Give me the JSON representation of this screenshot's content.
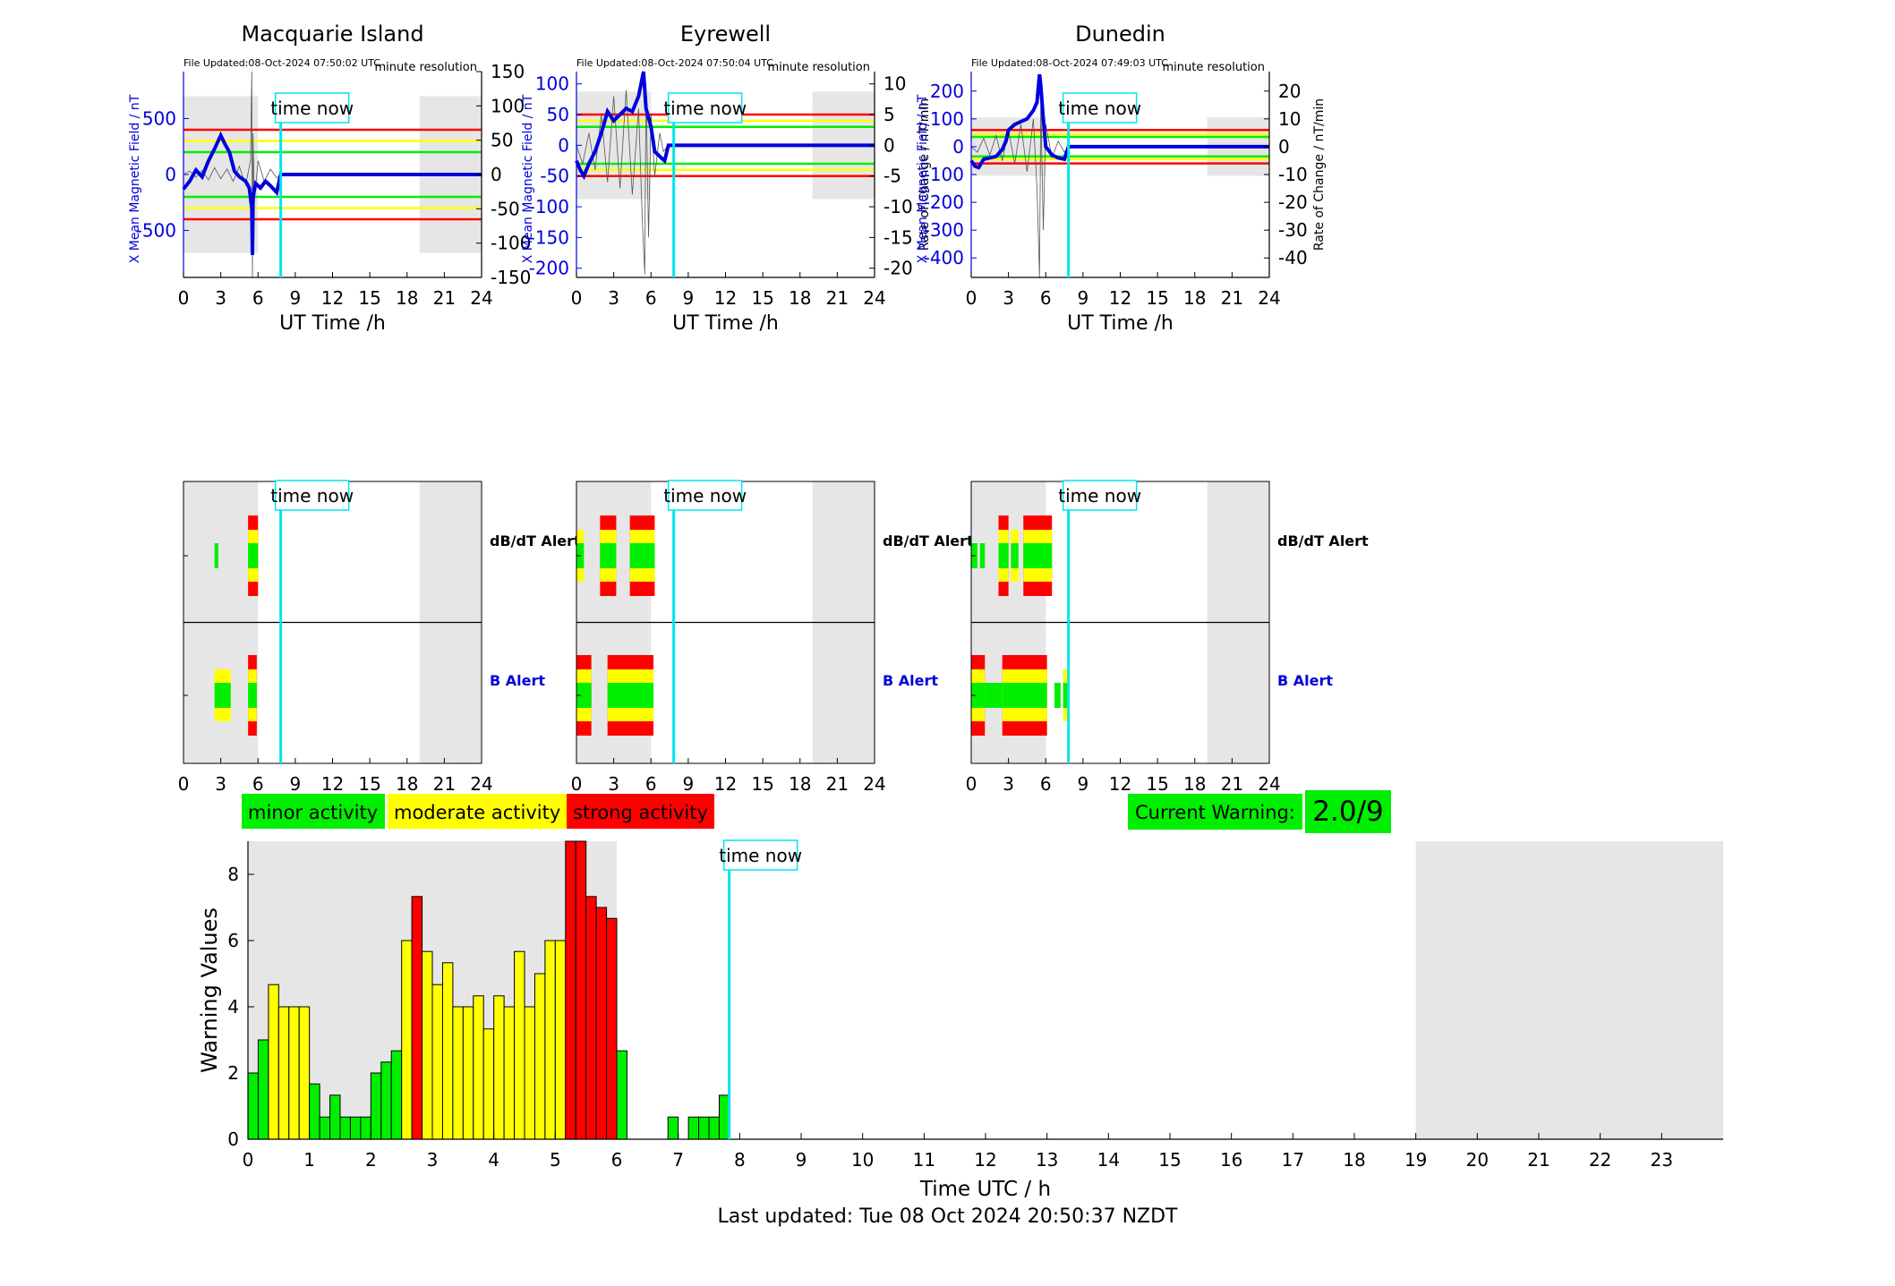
{
  "colors": {
    "minor": "#00ee00",
    "moderate": "#ffff00",
    "strong": "#ff0000",
    "field_line": "#0000dd",
    "time_now": "#00e5ee",
    "night_shade": "#e6e6e6"
  },
  "time_now_label": "time now",
  "footer_text": "Last updated: Tue 08 Oct 2024 20:50:37 NZDT",
  "legend": {
    "minor": "minor activity",
    "moderate": "moderate activity",
    "strong": "strong activity"
  },
  "current_warning": {
    "label": "Current Warning:",
    "value": "2.0/9"
  },
  "stations": [
    {
      "name": "Macquarie Island",
      "file_updated": "File Updated:08-Oct-2024 07:50:02 UTC",
      "resolution": "minute resolution",
      "ylabel_left": "X Mean Magnetic Field / nT",
      "ylabel_right": "",
      "ylim_left": [
        -920,
        920
      ],
      "left_ticks": [
        500,
        0,
        -500
      ],
      "ylim_right": [
        -150,
        150
      ],
      "right_ticks": [
        150,
        100,
        50,
        0,
        -50,
        -100,
        -150
      ],
      "thresholds": {
        "green": 200,
        "yellow": 300,
        "red": 400
      },
      "night_windows": [
        [
          0,
          6
        ],
        [
          19,
          24
        ]
      ],
      "time_now_h": 7.83,
      "field_trace": [
        [
          0,
          -130
        ],
        [
          0.5,
          -60
        ],
        [
          1,
          40
        ],
        [
          1.5,
          -20
        ],
        [
          2,
          120
        ],
        [
          2.5,
          230
        ],
        [
          3,
          350
        ],
        [
          3.3,
          280
        ],
        [
          3.7,
          200
        ],
        [
          4.1,
          30
        ],
        [
          4.5,
          -20
        ],
        [
          5,
          -60
        ],
        [
          5.3,
          -120
        ],
        [
          5.5,
          -300
        ],
        [
          5.55,
          -720
        ],
        [
          5.6,
          -200
        ],
        [
          5.8,
          -80
        ],
        [
          6.2,
          -120
        ],
        [
          6.6,
          -60
        ],
        [
          7,
          -100
        ],
        [
          7.5,
          -160
        ],
        [
          7.83,
          0
        ],
        [
          24,
          0
        ]
      ],
      "rate_trace": [
        [
          0,
          0
        ],
        [
          0.5,
          5
        ],
        [
          1,
          -4
        ],
        [
          1.5,
          6
        ],
        [
          2,
          -8
        ],
        [
          2.5,
          10
        ],
        [
          3,
          -6
        ],
        [
          3.5,
          8
        ],
        [
          4,
          -10
        ],
        [
          4.5,
          12
        ],
        [
          5,
          -15
        ],
        [
          5.4,
          20
        ],
        [
          5.5,
          150
        ],
        [
          5.55,
          -150
        ],
        [
          5.6,
          60
        ],
        [
          5.7,
          -40
        ],
        [
          6,
          20
        ],
        [
          6.5,
          -10
        ],
        [
          7,
          8
        ],
        [
          7.5,
          -5
        ],
        [
          7.83,
          0
        ]
      ],
      "dbdt_alerts": [
        {
          "start": 2.5,
          "end": 2.8,
          "level": 1
        },
        {
          "start": 5.2,
          "end": 6.0,
          "level": 3
        }
      ],
      "b_alerts": [
        {
          "start": 2.5,
          "end": 3.8,
          "level": 2
        },
        {
          "start": 5.2,
          "end": 5.9,
          "level": 3
        }
      ]
    },
    {
      "name": "Eyrewell",
      "file_updated": "File Updated:08-Oct-2024 07:50:04 UTC",
      "resolution": "minute resolution",
      "ylabel_left": "X Mean Magnetic Field / nT",
      "ylabel_right": "Rate of Change / nT/min",
      "ylim_left": [
        -215,
        120
      ],
      "left_ticks": [
        100,
        50,
        0,
        -50,
        -100,
        -150,
        -200
      ],
      "ylim_right": [
        -21.5,
        12
      ],
      "right_ticks": [
        10,
        5,
        0,
        -5,
        -10,
        -15,
        -20
      ],
      "thresholds": {
        "green": 30,
        "yellow": 40,
        "red": 50
      },
      "night_windows": [
        [
          0,
          6
        ],
        [
          19,
          24
        ]
      ],
      "time_now_h": 7.83,
      "field_trace": [
        [
          0,
          -25
        ],
        [
          0.3,
          -40
        ],
        [
          0.6,
          -50
        ],
        [
          1,
          -30
        ],
        [
          1.5,
          -10
        ],
        [
          2,
          20
        ],
        [
          2.5,
          55
        ],
        [
          3,
          40
        ],
        [
          3.5,
          50
        ],
        [
          4,
          60
        ],
        [
          4.5,
          55
        ],
        [
          5,
          80
        ],
        [
          5.4,
          120
        ],
        [
          5.6,
          60
        ],
        [
          6,
          30
        ],
        [
          6.3,
          -10
        ],
        [
          6.8,
          -20
        ],
        [
          7.1,
          -25
        ],
        [
          7.4,
          0
        ],
        [
          24,
          0
        ]
      ],
      "rate_trace": [
        [
          0,
          0
        ],
        [
          0.5,
          -3
        ],
        [
          1,
          2
        ],
        [
          1.5,
          -4
        ],
        [
          2,
          5
        ],
        [
          2.5,
          -6
        ],
        [
          3,
          8
        ],
        [
          3.5,
          -7
        ],
        [
          4,
          9
        ],
        [
          4.5,
          -8
        ],
        [
          5,
          6
        ],
        [
          5.3,
          -12
        ],
        [
          5.5,
          -21
        ],
        [
          5.6,
          10
        ],
        [
          5.8,
          -15
        ],
        [
          6,
          5
        ],
        [
          6.3,
          -5
        ],
        [
          6.7,
          2
        ],
        [
          7,
          -1
        ],
        [
          7.4,
          0
        ]
      ],
      "dbdt_alerts": [
        {
          "start": 0,
          "end": 0.6,
          "level": 2
        },
        {
          "start": 1.9,
          "end": 3.2,
          "level": 3
        },
        {
          "start": 4.3,
          "end": 6.3,
          "level": 3
        }
      ],
      "b_alerts": [
        {
          "start": 0,
          "end": 1.2,
          "level": 3
        },
        {
          "start": 2.5,
          "end": 6.2,
          "level": 3
        }
      ]
    },
    {
      "name": "Dunedin",
      "file_updated": "File Updated:08-Oct-2024 07:49:03 UTC",
      "resolution": "minute resolution",
      "ylabel_left": "X Mean Magnetic Field / nT",
      "ylabel_right": "Rate of Change / nT/min",
      "ylim_left": [
        -470,
        270
      ],
      "left_ticks": [
        200,
        100,
        0,
        -100,
        -200,
        -300,
        -400
      ],
      "ylim_right": [
        -47,
        27
      ],
      "right_ticks": [
        20,
        10,
        0,
        -10,
        -20,
        -30,
        -40
      ],
      "thresholds": {
        "green": 35,
        "yellow": 45,
        "red": 60
      },
      "night_windows": [
        [
          0,
          6
        ],
        [
          19,
          24
        ]
      ],
      "time_now_h": 7.83,
      "field_trace": [
        [
          0,
          -50
        ],
        [
          0.3,
          -70
        ],
        [
          0.6,
          -75
        ],
        [
          1,
          -45
        ],
        [
          1.5,
          -40
        ],
        [
          2,
          -35
        ],
        [
          2.5,
          -10
        ],
        [
          2.8,
          20
        ],
        [
          3,
          60
        ],
        [
          3.5,
          80
        ],
        [
          4,
          90
        ],
        [
          4.5,
          100
        ],
        [
          5,
          130
        ],
        [
          5.3,
          160
        ],
        [
          5.5,
          260
        ],
        [
          5.6,
          220
        ],
        [
          5.8,
          100
        ],
        [
          6,
          0
        ],
        [
          6.5,
          -30
        ],
        [
          7,
          -40
        ],
        [
          7.5,
          -45
        ],
        [
          7.83,
          0
        ],
        [
          24,
          0
        ]
      ],
      "rate_trace": [
        [
          0,
          0
        ],
        [
          0.5,
          -2
        ],
        [
          1,
          3
        ],
        [
          1.5,
          -3
        ],
        [
          2,
          4
        ],
        [
          2.5,
          -5
        ],
        [
          3,
          6
        ],
        [
          3.5,
          -6
        ],
        [
          4,
          8
        ],
        [
          4.5,
          -9
        ],
        [
          5,
          10
        ],
        [
          5.3,
          -15
        ],
        [
          5.5,
          -47
        ],
        [
          5.6,
          15
        ],
        [
          5.8,
          -30
        ],
        [
          6,
          8
        ],
        [
          6.5,
          -4
        ],
        [
          7,
          2
        ],
        [
          7.5,
          -2
        ],
        [
          7.83,
          0
        ]
      ],
      "dbdt_alerts": [
        {
          "start": 0,
          "end": 0.5,
          "level": 1
        },
        {
          "start": 0.7,
          "end": 1.1,
          "level": 1
        },
        {
          "start": 2.2,
          "end": 3.0,
          "level": 3
        },
        {
          "start": 3.2,
          "end": 3.8,
          "level": 2
        },
        {
          "start": 4.2,
          "end": 6.5,
          "level": 3
        }
      ],
      "b_alerts": [
        {
          "start": 0,
          "end": 1.1,
          "level": 3
        },
        {
          "start": 1.1,
          "end": 2.5,
          "level": 1
        },
        {
          "start": 2.5,
          "end": 6.1,
          "level": 3
        },
        {
          "start": 6.7,
          "end": 7.2,
          "level": 1
        },
        {
          "start": 7.4,
          "end": 7.9,
          "level": 2
        }
      ]
    }
  ],
  "alert_row_labels": {
    "dbdt": "dB/dT Alert",
    "b": "B Alert"
  },
  "chart_data": {
    "type": "bar",
    "xlabel": "Time UTC / h",
    "ylabel": "Warning Values",
    "xlim": [
      0,
      24
    ],
    "ylim": [
      0,
      9
    ],
    "x_ticks": [
      0,
      1,
      2,
      3,
      4,
      5,
      6,
      7,
      8,
      9,
      10,
      11,
      12,
      13,
      14,
      15,
      16,
      17,
      18,
      19,
      20,
      21,
      22,
      23
    ],
    "y_ticks": [
      0,
      2,
      4,
      6,
      8
    ],
    "bar_width_h": 0.1667,
    "night_windows": [
      [
        0,
        6
      ],
      [
        19,
        24
      ]
    ],
    "time_now_h": 7.83,
    "bars": [
      {
        "t": 0.0,
        "v": 2.0,
        "level": 1
      },
      {
        "t": 0.1667,
        "v": 3.0,
        "level": 1
      },
      {
        "t": 0.3333,
        "v": 4.67,
        "level": 2
      },
      {
        "t": 0.5,
        "v": 4.0,
        "level": 2
      },
      {
        "t": 0.6667,
        "v": 4.0,
        "level": 2
      },
      {
        "t": 0.8333,
        "v": 4.0,
        "level": 2
      },
      {
        "t": 1.0,
        "v": 1.67,
        "level": 1
      },
      {
        "t": 1.1667,
        "v": 0.67,
        "level": 1
      },
      {
        "t": 1.3333,
        "v": 1.33,
        "level": 1
      },
      {
        "t": 1.5,
        "v": 0.67,
        "level": 1
      },
      {
        "t": 1.6667,
        "v": 0.67,
        "level": 1
      },
      {
        "t": 1.8333,
        "v": 0.67,
        "level": 1
      },
      {
        "t": 2.0,
        "v": 2.0,
        "level": 1
      },
      {
        "t": 2.1667,
        "v": 2.33,
        "level": 1
      },
      {
        "t": 2.3333,
        "v": 2.67,
        "level": 1
      },
      {
        "t": 2.5,
        "v": 6.0,
        "level": 2
      },
      {
        "t": 2.6667,
        "v": 7.33,
        "level": 3
      },
      {
        "t": 2.8333,
        "v": 5.67,
        "level": 2
      },
      {
        "t": 3.0,
        "v": 4.67,
        "level": 2
      },
      {
        "t": 3.1667,
        "v": 5.33,
        "level": 2
      },
      {
        "t": 3.3333,
        "v": 4.0,
        "level": 2
      },
      {
        "t": 3.5,
        "v": 4.0,
        "level": 2
      },
      {
        "t": 3.6667,
        "v": 4.33,
        "level": 2
      },
      {
        "t": 3.8333,
        "v": 3.33,
        "level": 2
      },
      {
        "t": 4.0,
        "v": 4.33,
        "level": 2
      },
      {
        "t": 4.1667,
        "v": 4.0,
        "level": 2
      },
      {
        "t": 4.3333,
        "v": 5.67,
        "level": 2
      },
      {
        "t": 4.5,
        "v": 4.0,
        "level": 2
      },
      {
        "t": 4.6667,
        "v": 5.0,
        "level": 2
      },
      {
        "t": 4.8333,
        "v": 6.0,
        "level": 2
      },
      {
        "t": 5.0,
        "v": 6.0,
        "level": 2
      },
      {
        "t": 5.1667,
        "v": 9.0,
        "level": 3
      },
      {
        "t": 5.3333,
        "v": 9.0,
        "level": 3
      },
      {
        "t": 5.5,
        "v": 7.33,
        "level": 3
      },
      {
        "t": 5.6667,
        "v": 7.0,
        "level": 3
      },
      {
        "t": 5.8333,
        "v": 6.67,
        "level": 3
      },
      {
        "t": 6.0,
        "v": 2.67,
        "level": 1
      },
      {
        "t": 6.8333,
        "v": 0.67,
        "level": 1
      },
      {
        "t": 7.1667,
        "v": 0.67,
        "level": 1
      },
      {
        "t": 7.3333,
        "v": 0.67,
        "level": 1
      },
      {
        "t": 7.5,
        "v": 0.67,
        "level": 1
      },
      {
        "t": 7.6667,
        "v": 1.33,
        "level": 1
      }
    ]
  }
}
